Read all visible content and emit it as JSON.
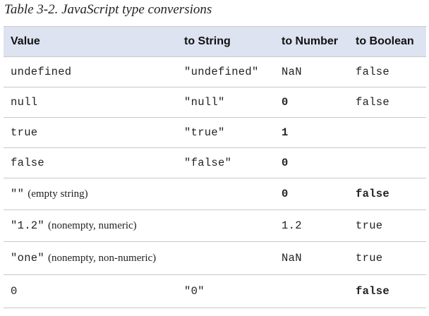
{
  "caption": "Table 3-2. JavaScript type conversions",
  "headers": [
    "Value",
    "to String",
    "to Number",
    "to Boolean"
  ],
  "rows": [
    {
      "value_code": "undefined",
      "value_note": "",
      "string": "\"undefined\"",
      "number": "NaN",
      "boolean": "false",
      "number_bold": false,
      "boolean_bold": false
    },
    {
      "value_code": "null",
      "value_note": "",
      "string": "\"null\"",
      "number": "0",
      "boolean": "false",
      "number_bold": true,
      "boolean_bold": false
    },
    {
      "value_code": "true",
      "value_note": "",
      "string": "\"true\"",
      "number": "1",
      "boolean": "",
      "number_bold": true,
      "boolean_bold": false
    },
    {
      "value_code": "false",
      "value_note": "",
      "string": "\"false\"",
      "number": "0",
      "boolean": "",
      "number_bold": true,
      "boolean_bold": false
    },
    {
      "value_code": "\"\"",
      "value_note": "(empty string)",
      "string": "",
      "number": "0",
      "boolean": "false",
      "number_bold": true,
      "boolean_bold": true
    },
    {
      "value_code": "\"1.2\"",
      "value_note": "(nonempty, numeric)",
      "string": "",
      "number": "1.2",
      "boolean": "true",
      "number_bold": false,
      "boolean_bold": false
    },
    {
      "value_code": "\"one\"",
      "value_note": "(nonempty, non-numeric)",
      "string": "",
      "number": "NaN",
      "boolean": "true",
      "number_bold": false,
      "boolean_bold": false
    },
    {
      "value_code": "0",
      "value_note": "",
      "string": "\"0\"",
      "number": "",
      "boolean": "false",
      "number_bold": false,
      "boolean_bold": true
    }
  ]
}
